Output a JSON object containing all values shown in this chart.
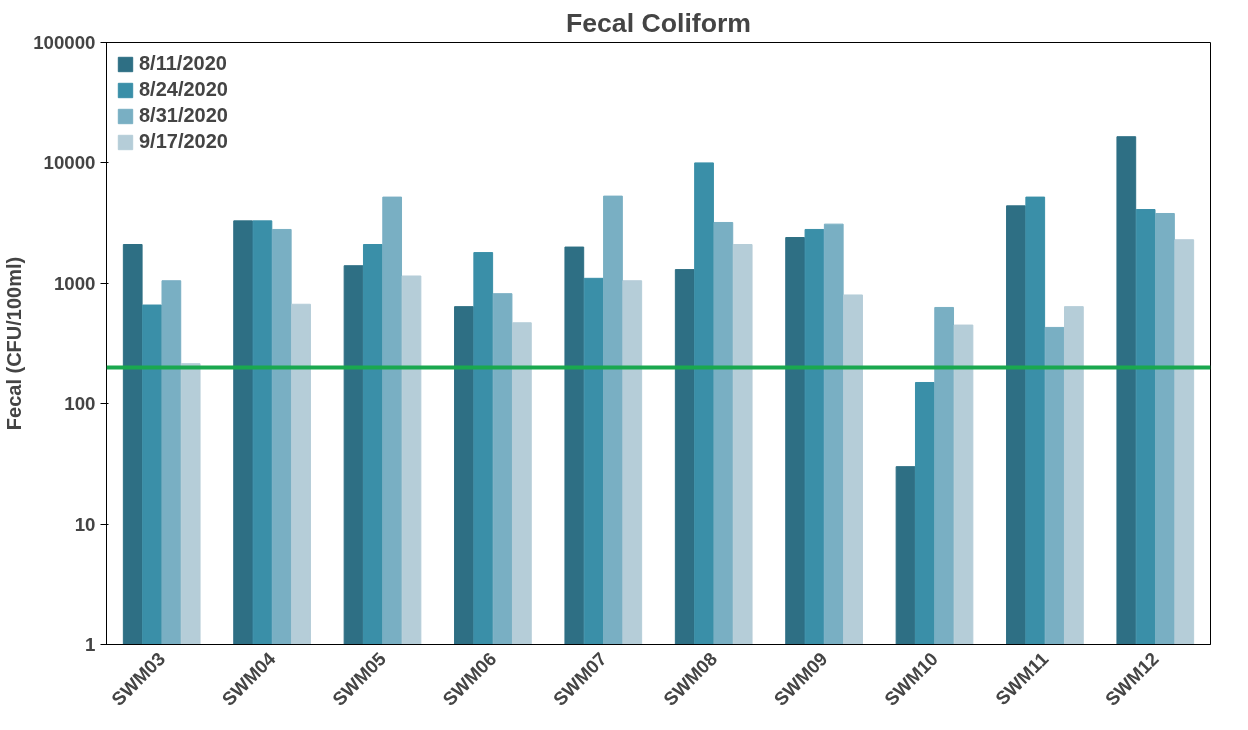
{
  "chart_data": {
    "type": "bar",
    "title": "Fecal Coliform",
    "ylabel": "Fecal (CFU/100ml)",
    "categories": [
      "SWM03",
      "SWM04",
      "SWM05",
      "SWM06",
      "SWM07",
      "SWM08",
      "SWM09",
      "SWM10",
      "SWM11",
      "SWM12"
    ],
    "series": [
      {
        "name": "8/11/2020",
        "color": "#2e6f84",
        "values": [
          2100,
          3300,
          1400,
          640,
          2000,
          1300,
          2400,
          30,
          4400,
          16500
        ]
      },
      {
        "name": "8/24/2020",
        "color": "#3a8fa8",
        "values": [
          660,
          3300,
          2100,
          1800,
          1100,
          10000,
          2800,
          150,
          5200,
          4100
        ]
      },
      {
        "name": "8/31/2020",
        "color": "#79afc3",
        "values": [
          1050,
          2800,
          5200,
          820,
          5300,
          3200,
          3100,
          630,
          430,
          3800
        ]
      },
      {
        "name": "9/17/2020",
        "color": "#b5cdd8",
        "values": [
          215,
          670,
          1150,
          470,
          1050,
          2100,
          800,
          450,
          640,
          2300
        ]
      }
    ],
    "log": "y",
    "ylim": [
      1,
      100000
    ],
    "yticks": [
      1,
      10,
      100,
      1000,
      10000,
      100000
    ],
    "ref_lines": [
      {
        "axis": "y",
        "value": 200,
        "color": "#1aa84f"
      }
    ],
    "legend": "top left",
    "grid": false
  }
}
